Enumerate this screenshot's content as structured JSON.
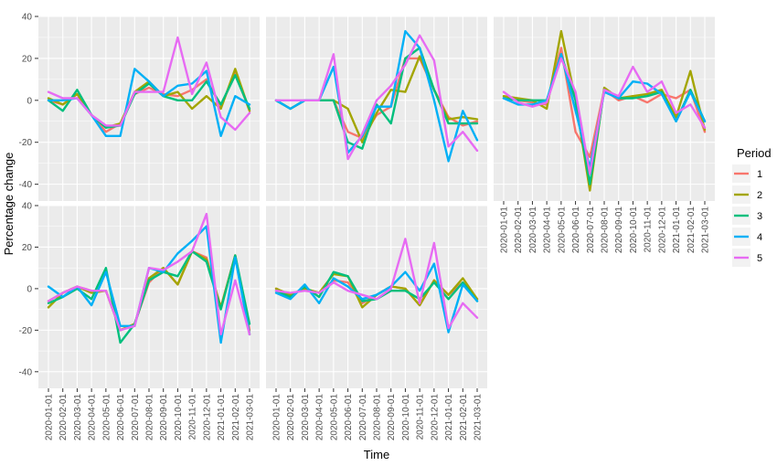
{
  "chart_data": {
    "type": "line",
    "layout": "faceted 2x3 grid, 5 panels",
    "xlabel": "Time",
    "ylabel": "Percentage change",
    "legend_title": "Period",
    "legend_position": "right",
    "grid": true,
    "ylim": [
      -48,
      40
    ],
    "yticks": [
      -40,
      -20,
      0,
      20,
      40
    ],
    "x": [
      "2020-01-01",
      "2020-02-01",
      "2020-03-01",
      "2020-04-01",
      "2020-05-01",
      "2020-06-01",
      "2020-07-01",
      "2020-08-01",
      "2020-09-01",
      "2020-10-01",
      "2020-11-01",
      "2020-12-01",
      "2021-01-01",
      "2021-02-01",
      "2021-03-01"
    ],
    "series_names": [
      "1",
      "2",
      "3",
      "4",
      "5"
    ],
    "colors": [
      "#F8766D",
      "#A3A500",
      "#00BF7D",
      "#00B0F6",
      "#E76BF3"
    ],
    "panels": [
      {
        "series": [
          {
            "name": "1",
            "values": [
              0,
              -2,
              3,
              -7,
              -15,
              -11,
              3,
              6,
              3,
              2,
              5,
              10,
              -3,
              13,
              -5
            ]
          },
          {
            "name": "2",
            "values": [
              1,
              -2,
              3,
              -7,
              -13,
              -11,
              4,
              9,
              2,
              4,
              -4,
              2,
              -4,
              15,
              -5
            ]
          },
          {
            "name": "3",
            "values": [
              0,
              -5,
              5,
              -7,
              -13,
              -12,
              3,
              8,
              2,
              0,
              0,
              9,
              -2,
              12,
              -4
            ]
          },
          {
            "name": "4",
            "values": [
              0,
              0,
              1,
              -7,
              -17,
              -17,
              15,
              9,
              2,
              7,
              8,
              14,
              -17,
              2,
              -2
            ]
          },
          {
            "name": "5",
            "values": [
              4,
              1,
              1,
              -7,
              -12,
              -12,
              4,
              4,
              4,
              30,
              3,
              18,
              -8,
              -14,
              -6
            ]
          }
        ]
      },
      {
        "series": [
          {
            "name": "1",
            "values": [
              0,
              -4,
              0,
              0,
              0,
              -15,
              -18,
              -7,
              -3,
              20,
              20,
              5,
              -8,
              -12,
              -10
            ]
          },
          {
            "name": "2",
            "values": [
              0,
              -4,
              0,
              0,
              0,
              -4,
              -20,
              -6,
              5,
              4,
              21,
              5,
              -9,
              -8,
              -9
            ]
          },
          {
            "name": "3",
            "values": [
              0,
              -4,
              0,
              0,
              0,
              -20,
              -23,
              -2,
              -11,
              20,
              25,
              5,
              -11,
              -11,
              -11
            ]
          },
          {
            "name": "4",
            "values": [
              0,
              -4,
              0,
              0,
              16,
              -25,
              -17,
              -3,
              -3,
              33,
              25,
              0,
              -29,
              -5,
              -19
            ]
          },
          {
            "name": "5",
            "values": [
              0,
              0,
              0,
              0,
              22,
              -28,
              -16,
              0,
              7,
              17,
              31,
              19,
              -22,
              -15,
              -24
            ]
          }
        ]
      },
      {
        "series": [
          {
            "name": "1",
            "values": [
              1,
              0,
              -1,
              -2,
              25,
              -15,
              -27,
              5,
              0,
              2,
              -1,
              3,
              1,
              5,
              -15
            ]
          },
          {
            "name": "2",
            "values": [
              2,
              1,
              0,
              -4,
              33,
              0,
              -43,
              6,
              1,
              2,
              3,
              5,
              -8,
              14,
              -14
            ]
          },
          {
            "name": "3",
            "values": [
              1,
              0,
              0,
              0,
              22,
              0,
              -40,
              5,
              1,
              1,
              2,
              4,
              -10,
              5,
              -10
            ]
          },
          {
            "name": "4",
            "values": [
              1,
              -2,
              -2,
              0,
              22,
              -5,
              -32,
              4,
              1,
              9,
              8,
              3,
              -10,
              4,
              -10
            ]
          },
          {
            "name": "5",
            "values": [
              4,
              -1,
              -3,
              -1,
              20,
              4,
              -35,
              5,
              2,
              16,
              4,
              9,
              -6,
              -2,
              -13
            ]
          }
        ]
      },
      {
        "series": [
          {
            "name": "1",
            "values": [
              -6,
              -2,
              1,
              -1,
              -1,
              -20,
              -17,
              3,
              10,
              2,
              18,
              15,
              -9,
              16,
              -20
            ]
          },
          {
            "name": "2",
            "values": [
              -9,
              -2,
              1,
              -2,
              -1,
              -20,
              -17,
              5,
              10,
              2,
              18,
              14,
              -9,
              16,
              -22
            ]
          },
          {
            "name": "3",
            "values": [
              -7,
              -4,
              0,
              -5,
              10,
              -26,
              -17,
              4,
              8,
              6,
              18,
              13,
              -10,
              16,
              -17
            ]
          },
          {
            "name": "4",
            "values": [
              1,
              -4,
              1,
              -8,
              8,
              -18,
              -18,
              10,
              8,
              17,
              23,
              30,
              -26,
              15,
              -22
            ]
          },
          {
            "name": "5",
            "values": [
              -6,
              -2,
              1,
              -1,
              -1,
              -20,
              -18,
              10,
              9,
              13,
              18,
              36,
              -22,
              4,
              -22
            ]
          }
        ]
      },
      {
        "series": [
          {
            "name": "1",
            "values": [
              0,
              -3,
              0,
              -2,
              4,
              3,
              -7,
              -3,
              1,
              0,
              -8,
              4,
              -3,
              3,
              -5
            ]
          },
          {
            "name": "2",
            "values": [
              0,
              -3,
              0,
              -2,
              7,
              6,
              -9,
              -3,
              1,
              0,
              -8,
              4,
              -3,
              5,
              -5
            ]
          },
          {
            "name": "3",
            "values": [
              -1,
              -4,
              1,
              -4,
              8,
              6,
              -6,
              -5,
              -1,
              -1,
              -5,
              3,
              -5,
              3,
              -6
            ]
          },
          {
            "name": "4",
            "values": [
              -2,
              -5,
              2,
              -7,
              5,
              1,
              -5,
              -3,
              1,
              8,
              -1,
              12,
              -21,
              2,
              -6
            ]
          },
          {
            "name": "5",
            "values": [
              -1,
              -2,
              -1,
              -2,
              3,
              -1,
              -3,
              -5,
              0,
              24,
              -7,
              22,
              -19,
              -7,
              -14
            ]
          }
        ]
      }
    ]
  }
}
